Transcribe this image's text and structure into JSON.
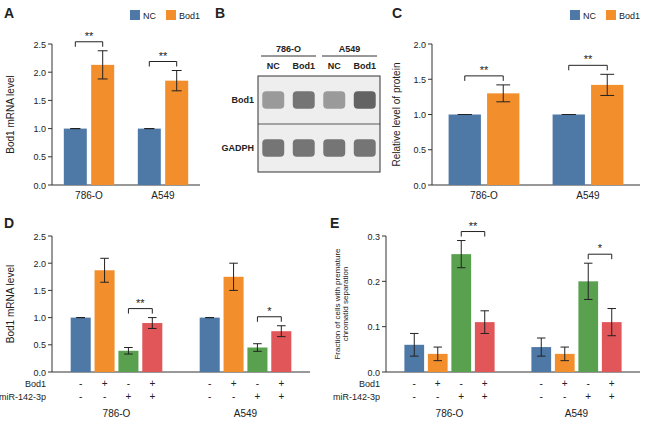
{
  "chart_data": [
    {
      "type": "bar",
      "title": "A",
      "ylabel": "Bod1 mRNA level",
      "categories": [
        "786-O",
        "A549"
      ],
      "series": [
        {
          "name": "NC",
          "values": [
            1.0,
            1.0
          ],
          "errors": [
            0.0,
            0.0
          ]
        },
        {
          "name": "Bod1",
          "values": [
            2.13,
            1.85
          ],
          "errors": [
            0.25,
            0.18
          ]
        }
      ],
      "ylim": [
        0,
        2.5
      ],
      "yticks": [
        {
          "value": 0.0,
          "label": "0.0"
        },
        0.5,
        {
          "value": 1.0,
          "label": "1.0"
        },
        1.5,
        {
          "value": 2.0,
          "label": "2.0"
        },
        2.5
      ],
      "annotations": [
        "**",
        "**"
      ],
      "legend": "upper right",
      "grid": false
    },
    {
      "type": "heatmap",
      "title": "B",
      "groups": [
        {
          "name": "786-O",
          "columns": [
            "NC",
            "Bod1"
          ]
        },
        {
          "name": "A549",
          "columns": [
            "NC",
            "Bod1"
          ]
        }
      ],
      "rows": [
        "Bod1",
        "GADPH"
      ],
      "cells": [
        [
          0.55,
          0.75,
          0.55,
          0.85
        ],
        [
          0.75,
          0.75,
          0.75,
          0.75
        ]
      ],
      "zlim": [
        0,
        1
      ]
    },
    {
      "type": "bar",
      "title": "C",
      "ylabel": "Relative level of protein",
      "categories": [
        "786-O",
        "A549"
      ],
      "series": [
        {
          "name": "NC",
          "values": [
            1.0,
            1.0
          ],
          "errors": [
            0.0,
            0.0
          ]
        },
        {
          "name": "Bod1",
          "values": [
            1.3,
            1.42
          ],
          "errors": [
            0.12,
            0.15
          ]
        }
      ],
      "ylim": [
        0,
        2.0
      ],
      "yticks": [
        {
          "value": 0.0,
          "label": "0.0"
        },
        0.5,
        {
          "value": 1.0,
          "label": "1.0"
        },
        1.5,
        {
          "value": 2.0,
          "label": "2.0"
        }
      ],
      "annotations": [
        "**",
        "**"
      ],
      "legend": "upper right",
      "grid": false
    },
    {
      "type": "bar",
      "title": "D",
      "ylabel": "Bod1 mRNA level",
      "categories": [
        "786-O",
        "A549"
      ],
      "series": [
        {
          "values": [
            1.0,
            1.0
          ],
          "errors": [
            0.0,
            0.0
          ]
        },
        {
          "values": [
            1.87,
            1.75
          ],
          "errors": [
            0.22,
            0.25
          ]
        },
        {
          "values": [
            0.39,
            0.45
          ],
          "errors": [
            0.06,
            0.07
          ]
        },
        {
          "values": [
            0.9,
            0.75
          ],
          "errors": [
            0.1,
            0.1
          ]
        }
      ],
      "ylim": [
        0,
        2.5
      ],
      "yticks": [
        {
          "value": 0.0,
          "label": "0.0"
        },
        0.5,
        {
          "value": 1.0,
          "label": "1.0"
        },
        1.5,
        {
          "value": 2.0,
          "label": "2.0"
        },
        2.5
      ],
      "annotations": [
        "**",
        "*"
      ],
      "table": [
        {
          "label": "Bod1",
          "values": [
            "-",
            "+",
            "-",
            "+",
            "-",
            "+",
            "-",
            "+"
          ]
        },
        {
          "label": "miR-142-3p",
          "values": [
            "-",
            "-",
            "+",
            "+",
            "-",
            "-",
            "+",
            "+"
          ]
        }
      ],
      "grid": false
    },
    {
      "type": "bar",
      "title": "E",
      "ylabel": "Fraction of cells with premature\nchromatid separation",
      "categories": [
        "786-O",
        "A549"
      ],
      "series": [
        {
          "values": [
            0.06,
            0.055
          ],
          "errors": [
            0.025,
            0.02
          ]
        },
        {
          "values": [
            0.04,
            0.04
          ],
          "errors": [
            0.015,
            0.015
          ]
        },
        {
          "values": [
            0.26,
            0.2
          ],
          "errors": [
            0.03,
            0.04
          ]
        },
        {
          "values": [
            0.11,
            0.11
          ],
          "errors": [
            0.025,
            0.03
          ]
        }
      ],
      "ylim": [
        0,
        0.3
      ],
      "yticks": [
        {
          "value": 0.0,
          "label": "0.0"
        },
        0.1,
        0.2,
        0.3
      ],
      "annotations": [
        "**",
        "*"
      ],
      "table": [
        {
          "label": "Bod1",
          "values": [
            "-",
            "+",
            "-",
            "+",
            "-",
            "+",
            "-",
            "+"
          ]
        },
        {
          "label": "miR-142-3p",
          "values": [
            "-",
            "-",
            "+",
            "+",
            "-",
            "-",
            "+",
            "+"
          ]
        }
      ],
      "grid": false
    }
  ]
}
